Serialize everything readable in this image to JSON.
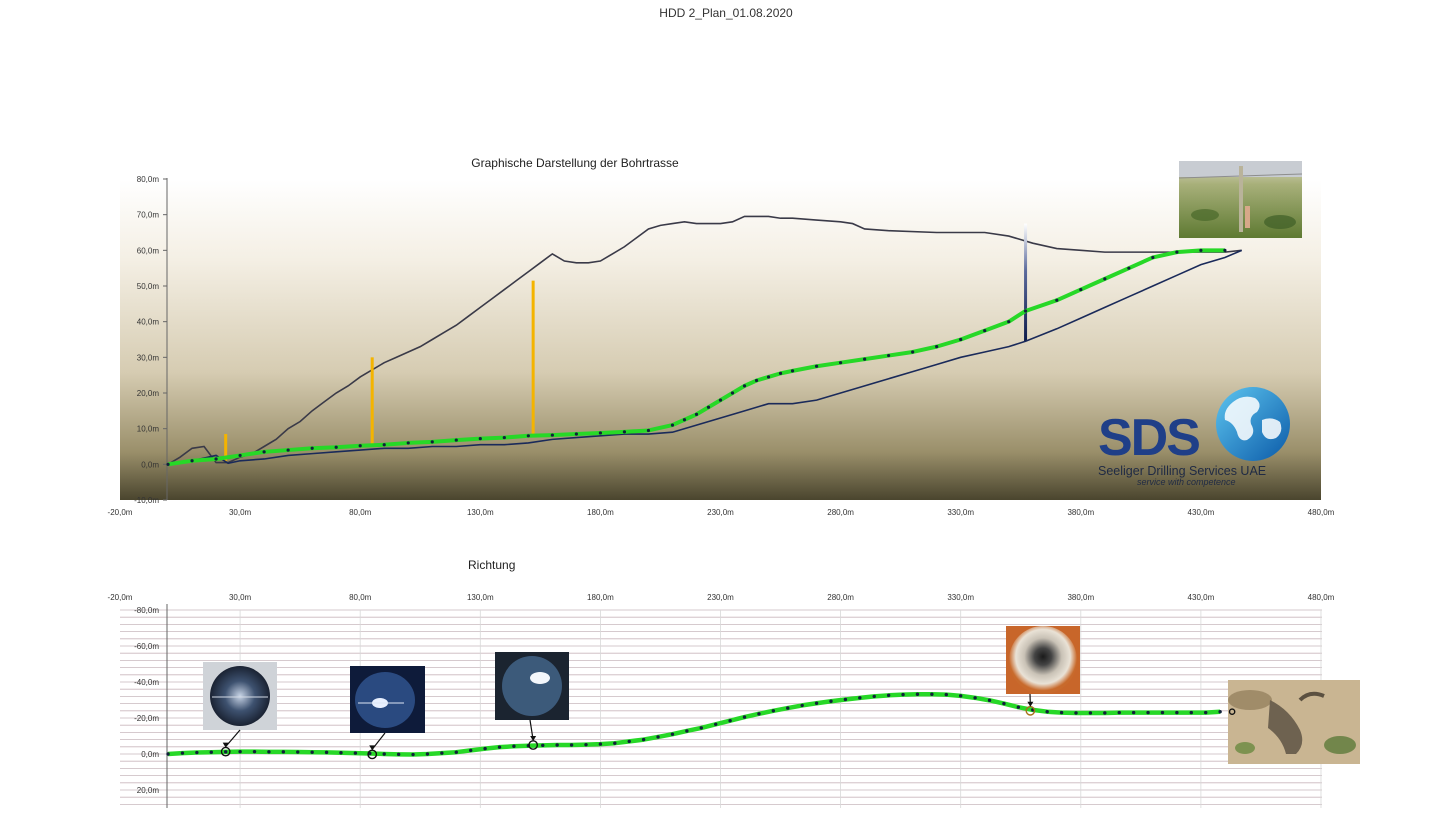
{
  "page_title": "HDD 2_Plan_01.08.2020",
  "logo": {
    "letters": "SDS",
    "company": "Seeliger Drilling Services UAE",
    "tagline": "service with competence"
  },
  "photos": [
    "site-photo-marker-post",
    "borehole-photo-1",
    "borehole-photo-2",
    "borehole-photo-3",
    "pipe-photo",
    "exit-pit-photo"
  ],
  "colors": {
    "terrain": "#3a3a48",
    "design_path": "#1a2a5a",
    "drilled_path": "#27d827",
    "depth_marker": "#f4b400",
    "grid": "#c9b8bd"
  },
  "chart_data": [
    {
      "type": "line",
      "title": "Graphische Darstellung der Bohrtrasse",
      "x_ticks": [
        "-20,0m",
        "30,0m",
        "80,0m",
        "130,0m",
        "180,0m",
        "230,0m",
        "280,0m",
        "330,0m",
        "380,0m",
        "430,0m",
        "480,0m"
      ],
      "y_ticks": [
        "80,0m",
        "70,0m",
        "60,0m",
        "50,0m",
        "40,0m",
        "30,0m",
        "20,0m",
        "10,0m",
        "0,0m",
        "-10,0m"
      ],
      "xlim": [
        -20,
        480
      ],
      "ylim": [
        -10,
        80
      ],
      "series": [
        {
          "role": "terrain",
          "x": [
            0,
            5,
            10,
            15,
            20,
            25,
            30,
            35,
            40,
            45,
            50,
            55,
            60,
            65,
            70,
            75,
            80,
            85,
            90,
            95,
            100,
            105,
            110,
            115,
            120,
            125,
            130,
            135,
            140,
            145,
            150,
            155,
            160,
            165,
            170,
            175,
            180,
            185,
            190,
            195,
            200,
            205,
            210,
            215,
            220,
            225,
            230,
            235,
            240,
            245,
            250,
            255,
            260,
            270,
            280,
            285,
            290,
            300,
            320,
            340,
            350,
            360,
            370,
            380,
            390,
            400,
            410,
            420,
            430,
            440,
            447
          ],
          "y": [
            0,
            2,
            4.5,
            5,
            0.5,
            0.5,
            2,
            3,
            5,
            7,
            10,
            12,
            15,
            17.5,
            20,
            22,
            24.5,
            26.5,
            28.5,
            30,
            31.5,
            33,
            35,
            37,
            39,
            41.5,
            44,
            46.5,
            49,
            51.5,
            54,
            56.5,
            59,
            57,
            56.5,
            56.5,
            57,
            59,
            61,
            63.5,
            66,
            67,
            67.5,
            68,
            67.5,
            67.5,
            67.5,
            68,
            69.5,
            69.5,
            69.5,
            69,
            69,
            68.5,
            68,
            67.5,
            66,
            65.5,
            65,
            65,
            64,
            62,
            60.5,
            60,
            59.5,
            59.5,
            59.5,
            59.5,
            59.5,
            59.5,
            60
          ]
        },
        {
          "role": "design",
          "x": [
            0,
            10,
            20,
            25,
            30,
            40,
            50,
            60,
            70,
            80,
            90,
            100,
            110,
            120,
            130,
            140,
            150,
            160,
            170,
            180,
            190,
            200,
            210,
            220,
            230,
            240,
            250,
            260,
            270,
            280,
            290,
            300,
            310,
            320,
            330,
            340,
            350,
            357,
            370,
            380,
            390,
            400,
            410,
            420,
            430,
            440,
            447
          ],
          "y": [
            0,
            1,
            2.5,
            0.3,
            1,
            1.5,
            2.5,
            3,
            3.5,
            4,
            4.5,
            4.5,
            5,
            5,
            5.5,
            5.5,
            6,
            7,
            7.5,
            8,
            8.5,
            8.5,
            9,
            11,
            13,
            15,
            17,
            17,
            18,
            20,
            22,
            24,
            26,
            28,
            30,
            31.5,
            33,
            34.5,
            38,
            41,
            44,
            47,
            50,
            53,
            56,
            58,
            60
          ]
        },
        {
          "role": "drilled",
          "x": [
            0,
            10,
            20,
            30,
            40,
            50,
            60,
            70,
            80,
            90,
            100,
            110,
            120,
            130,
            140,
            150,
            160,
            170,
            180,
            190,
            200,
            210,
            215,
            220,
            225,
            230,
            235,
            240,
            245,
            250,
            255,
            260,
            270,
            280,
            290,
            300,
            310,
            320,
            330,
            340,
            350,
            357,
            370,
            380,
            390,
            400,
            410,
            420,
            430,
            440
          ],
          "y": [
            0,
            1,
            1.5,
            2.5,
            3.5,
            4,
            4.5,
            4.8,
            5.2,
            5.5,
            6,
            6.3,
            6.8,
            7.2,
            7.5,
            8,
            8.2,
            8.5,
            8.8,
            9.1,
            9.5,
            11,
            12.5,
            14,
            16,
            18,
            20,
            22,
            23.5,
            24.5,
            25.5,
            26.2,
            27.5,
            28.5,
            29.5,
            30.5,
            31.5,
            33,
            35,
            37.5,
            40,
            43,
            46,
            49,
            52,
            55,
            58,
            59.5,
            60,
            60
          ]
        },
        {
          "role": "depth-markers",
          "x": [
            24,
            85,
            152,
            357
          ],
          "y_top": [
            8.5,
            30,
            51.5,
            67.5
          ],
          "y_bottom": [
            1,
            5,
            8,
            34.5
          ]
        }
      ]
    },
    {
      "type": "line",
      "title": "Richtung",
      "x_ticks": [
        "-20,0m",
        "30,0m",
        "80,0m",
        "130,0m",
        "180,0m",
        "230,0m",
        "280,0m",
        "330,0m",
        "380,0m",
        "430,0m",
        "480,0m"
      ],
      "y_ticks": [
        "-80,0m",
        "-60,0m",
        "-40,0m",
        "-20,0m",
        "0,0m",
        "20,0m"
      ],
      "xlim": [
        -20,
        480
      ],
      "ylim": [
        -80,
        30
      ],
      "series": [
        {
          "role": "drilled",
          "x": [
            0,
            6,
            12,
            18,
            24,
            30,
            36,
            42,
            48,
            54,
            60,
            66,
            72,
            78,
            84,
            90,
            96,
            102,
            108,
            114,
            120,
            126,
            132,
            138,
            144,
            150,
            156,
            162,
            168,
            174,
            180,
            186,
            192,
            198,
            204,
            210,
            216,
            222,
            228,
            234,
            240,
            246,
            252,
            258,
            264,
            270,
            276,
            282,
            288,
            294,
            300,
            306,
            312,
            318,
            324,
            330,
            336,
            342,
            348,
            354,
            360,
            366,
            372,
            378,
            384,
            390,
            396,
            402,
            408,
            414,
            420,
            426,
            432,
            438
          ],
          "y": [
            0,
            -0.5,
            -0.8,
            -1,
            -1.2,
            -1.3,
            -1.3,
            -1.2,
            -1.2,
            -1.1,
            -1,
            -0.9,
            -0.7,
            -0.5,
            -0.3,
            0,
            0.2,
            0.3,
            0,
            -0.5,
            -1,
            -2,
            -3,
            -3.8,
            -4.3,
            -4.6,
            -4.8,
            -5,
            -5,
            -5.2,
            -5.5,
            -6,
            -7,
            -8,
            -9.5,
            -11,
            -12.8,
            -14.5,
            -16.5,
            -18.5,
            -20.5,
            -22.3,
            -24,
            -25.5,
            -27,
            -28.2,
            -29.3,
            -30.3,
            -31.2,
            -32,
            -32.6,
            -33,
            -33.2,
            -33.2,
            -33,
            -32.3,
            -31.2,
            -29.8,
            -28,
            -26,
            -24.5,
            -23.5,
            -23,
            -22.8,
            -22.8,
            -22.8,
            -23,
            -23,
            -23,
            -23,
            -23,
            -23,
            -23,
            -23.5
          ]
        },
        {
          "role": "photo-markers",
          "x": [
            24,
            85,
            152,
            359,
            443
          ],
          "y": [
            -1.3,
            0.2,
            -5,
            -24,
            -23.5
          ]
        }
      ]
    }
  ]
}
